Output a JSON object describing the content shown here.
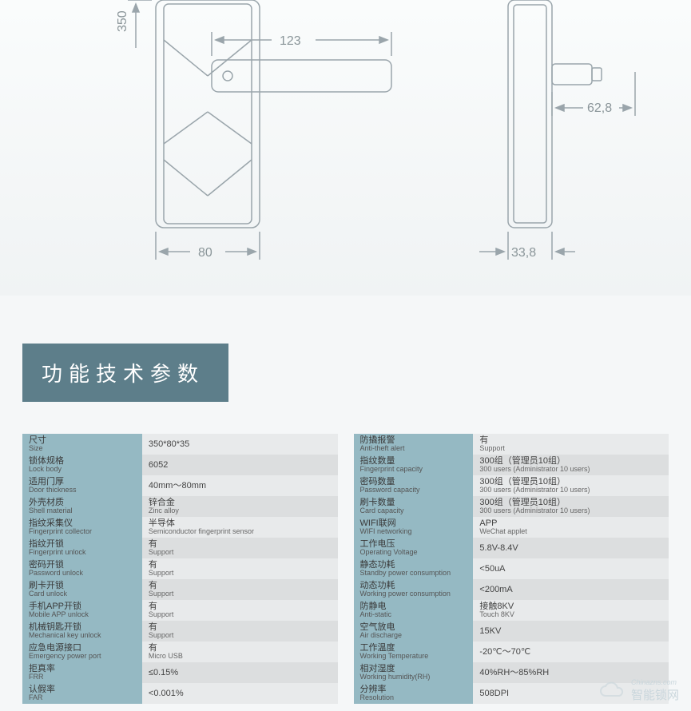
{
  "diagram": {
    "stroke": "#9aa5ab",
    "text_color": "#8a9599",
    "bg_top": "#fafcfc",
    "bg_bottom": "#f0f3f4",
    "font_size": 16,
    "dims": {
      "height": "350",
      "handle_len": "123",
      "side_ext": "62,8",
      "body_width": "80",
      "side_depth": "33,8"
    }
  },
  "header": {
    "title": "功能技术参数",
    "bg_color": "#5d7e8a",
    "text_color": "#ffffff",
    "font_size": 26
  },
  "table_style": {
    "label_bg": "#95b9c3",
    "value_bg_even": "#e8eaeb",
    "value_bg_odd": "#dcdedf",
    "font_size": 11
  },
  "specs_left": [
    {
      "cn": "尺寸",
      "en": "Size",
      "val": "350*80*35"
    },
    {
      "cn": "锁体规格",
      "en": "Lock body",
      "val": "6052"
    },
    {
      "cn": "适用门厚",
      "en": "Door thickness",
      "val": "40mm～80mm"
    },
    {
      "cn": "外壳材质",
      "en": "Shell material",
      "val": "锌合金",
      "val_sub": "Zinc alloy"
    },
    {
      "cn": "指纹采集仪",
      "en": "Fingerprint collector",
      "val": "半导体",
      "val_sub": "Semiconductor fingerprint sensor"
    },
    {
      "cn": "指纹开锁",
      "en": "Fingerprint unlock",
      "val": "有",
      "val_sub": "Support"
    },
    {
      "cn": "密码开锁",
      "en": "Password unlock",
      "val": "有",
      "val_sub": "Support"
    },
    {
      "cn": "刷卡开锁",
      "en": "Card unlock",
      "val": "有",
      "val_sub": "Support"
    },
    {
      "cn": "手机APP开锁",
      "en": "Mobile APP unlock",
      "val": "有",
      "val_sub": "Support"
    },
    {
      "cn": "机械钥匙开锁",
      "en": "Mechanical key unlock",
      "val": "有",
      "val_sub": "Support"
    },
    {
      "cn": "应急电源接口",
      "en": "Emergency power port",
      "val": "有",
      "val_sub": "Micro USB"
    },
    {
      "cn": "拒真率",
      "en": "FRR",
      "val": "≤0.15%"
    },
    {
      "cn": "认假率",
      "en": "FAR",
      "val": "<0.001%"
    }
  ],
  "specs_right": [
    {
      "cn": "防撬报警",
      "en": "Anti-theft alert",
      "val": "有",
      "val_sub": "Support"
    },
    {
      "cn": "指纹数量",
      "en": "Fingerprint capacity",
      "val": "300组（管理员10组）",
      "val_sub": "300 users (Administrator 10 users)"
    },
    {
      "cn": "密码数量",
      "en": "Password capacity",
      "val": "300组（管理员10组）",
      "val_sub": "300 users (Administrator 10 users)"
    },
    {
      "cn": "刷卡数量",
      "en": "Card capacity",
      "val": "300组（管理员10组）",
      "val_sub": "300 users (Administrator 10 users)"
    },
    {
      "cn": "WIFI联网",
      "en": "WIFI networking",
      "val": "APP",
      "val_sub": "WeChat applet"
    },
    {
      "cn": "工作电压",
      "en": "Operating Voltage",
      "val": "5.8V-8.4V"
    },
    {
      "cn": "静态功耗",
      "en": "Standby power consumption",
      "val": "<50uA"
    },
    {
      "cn": "动态功耗",
      "en": "Working power consumption",
      "val": "<200mA"
    },
    {
      "cn": "防静电",
      "en": "Anti-static",
      "val": "接触8KV",
      "val_sub": "Touch 8KV"
    },
    {
      "cn": "空气放电",
      "en": "Air discharge",
      "val": "15KV"
    },
    {
      "cn": "工作温度",
      "en": "Working Temperature",
      "val": "-20℃～70℃"
    },
    {
      "cn": "相对湿度",
      "en": "Working humidity(RH)",
      "val": "40%RH～85%RH"
    },
    {
      "cn": "分辨率",
      "en": "Resolution",
      "val": "508DPI"
    }
  ],
  "watermark": {
    "small": "Chinazns.com",
    "large": "智能锁网"
  }
}
